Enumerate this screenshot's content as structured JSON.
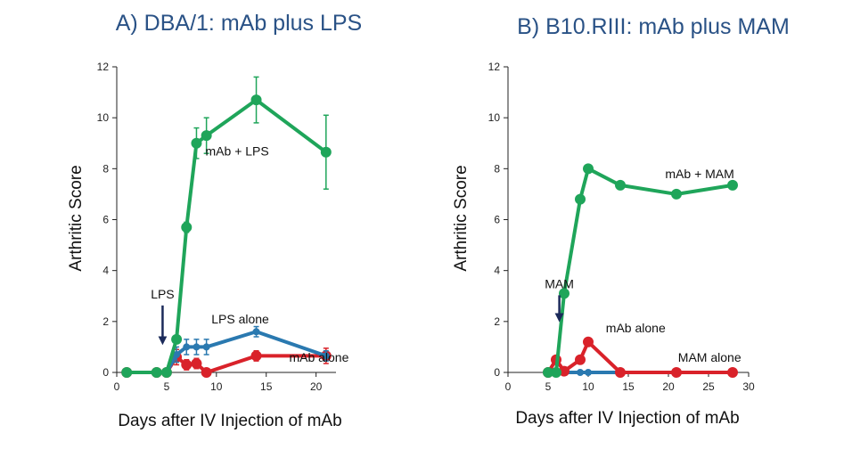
{
  "chart_data": [
    {
      "type": "line",
      "title": "A) DBA/1: mAb plus LPS",
      "xlabel": "Days after IV Injection of mAb",
      "ylabel": "Arthritic Score",
      "xlim": [
        0,
        22
      ],
      "ylim": [
        0,
        12
      ],
      "x_ticks": [
        0,
        5,
        10,
        15,
        20
      ],
      "y_ticks": [
        0,
        2,
        4,
        6,
        8,
        10,
        12
      ],
      "grid": false,
      "series": [
        {
          "name": "mAb + LPS",
          "color": "#1fa55a",
          "x": [
            1,
            4,
            5,
            6,
            7,
            8,
            9,
            14,
            21
          ],
          "y": [
            0,
            0,
            0,
            1.3,
            5.7,
            9.0,
            9.3,
            10.7,
            8.65
          ],
          "error": [
            0,
            0,
            0,
            0.1,
            0.2,
            0.6,
            0.7,
            0.9,
            1.45
          ]
        },
        {
          "name": "LPS alone",
          "color": "#2a79b0",
          "x": [
            1,
            4,
            5,
            6,
            7,
            8,
            9,
            14,
            21
          ],
          "y": [
            0,
            0,
            0,
            0.7,
            1.0,
            1.0,
            1.0,
            1.6,
            0.65
          ],
          "error": [
            0,
            0,
            0,
            0.3,
            0.3,
            0.3,
            0.3,
            0.2,
            0.2
          ]
        },
        {
          "name": "mAb alone",
          "color": "#d9222a",
          "x": [
            1,
            4,
            5,
            6,
            7,
            8,
            9,
            14,
            21
          ],
          "y": [
            0,
            0,
            0,
            0.6,
            0.3,
            0.35,
            0,
            0.65,
            0.65
          ],
          "error": [
            0,
            0,
            0,
            0.3,
            0.2,
            0.2,
            0,
            0.2,
            0.3
          ]
        }
      ],
      "annotations": [
        {
          "text": "mAb + LPS",
          "x": 8.9,
          "y": 8.7
        },
        {
          "text": "LPS alone",
          "x": 9.5,
          "y": 2.1
        },
        {
          "text": "mAb alone",
          "x": 17.3,
          "y": 0.6
        }
      ],
      "arrow": {
        "label": "LPS",
        "x": 4.6,
        "y": 2.7,
        "y_end": 1.25
      }
    },
    {
      "type": "line",
      "title": "B) B10.RIII: mAb plus MAM",
      "xlabel": "Days after IV Injection of mAb",
      "ylabel": "Arthritic Score",
      "xlim": [
        0,
        30
      ],
      "ylim": [
        0,
        12
      ],
      "x_ticks": [
        0,
        5,
        10,
        15,
        20,
        25,
        30
      ],
      "y_ticks": [
        0,
        2,
        4,
        6,
        8,
        10,
        12
      ],
      "grid": false,
      "series": [
        {
          "name": "mAb + MAM",
          "color": "#1fa55a",
          "x": [
            5,
            6,
            7,
            9,
            10,
            14,
            21,
            28
          ],
          "y": [
            0,
            0,
            3.1,
            6.8,
            8.0,
            7.35,
            7.0,
            7.35
          ]
        },
        {
          "name": "mAb alone",
          "color": "#d9222a",
          "x": [
            5,
            6,
            7,
            9,
            10,
            14,
            21,
            28
          ],
          "y": [
            0,
            0.5,
            0.05,
            0.5,
            1.2,
            0,
            0,
            0
          ]
        },
        {
          "name": "MAM alone",
          "color": "#2a79b0",
          "x": [
            5,
            6,
            7,
            9,
            10,
            14,
            21,
            28
          ],
          "y": [
            0,
            0,
            0,
            0,
            0,
            0,
            0,
            0
          ]
        }
      ],
      "annotations": [
        {
          "text": "mAb + MAM",
          "x": 19.6,
          "y": 7.8
        },
        {
          "text": "mAb alone",
          "x": 12.2,
          "y": 1.75
        },
        {
          "text": "MAM alone",
          "x": 21.2,
          "y": 0.6
        }
      ],
      "arrow": {
        "label": "MAM",
        "x": 6.4,
        "y": 3.1,
        "y_end": 2.15
      }
    }
  ]
}
